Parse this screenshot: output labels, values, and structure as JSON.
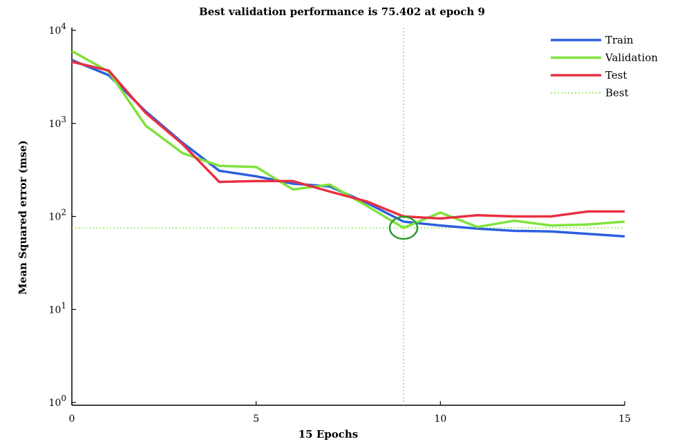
{
  "chart_data": {
    "type": "line",
    "title": "Best validation performance is 75.402 at epoch 9",
    "xlabel": "15 Epochs",
    "ylabel": "Mean Squared error (mse)",
    "x_ticks": [
      "0",
      "5",
      "10",
      "15"
    ],
    "y_ticks": [
      {
        "base": "10",
        "exp": "0"
      },
      {
        "base": "10",
        "exp": "1"
      },
      {
        "base": "10",
        "exp": "2"
      },
      {
        "base": "10",
        "exp": "3"
      },
      {
        "base": "10",
        "exp": "4"
      }
    ],
    "xlim": [
      0,
      15
    ],
    "ylim": [
      1,
      10000
    ],
    "y_scale": "log",
    "legend_position": "top-right",
    "x": [
      0,
      1,
      2,
      3,
      4,
      5,
      6,
      7,
      8,
      9,
      10,
      11,
      12,
      13,
      14,
      15
    ],
    "series": [
      {
        "name": "Train",
        "color": "#2b5fe0",
        "values": [
          4800,
          3300,
          1350,
          620,
          310,
          270,
          225,
          210,
          140,
          88,
          80,
          74,
          70,
          69,
          65,
          61
        ]
      },
      {
        "name": "Validation",
        "color": "#7fe23a",
        "values": [
          6000,
          3600,
          950,
          480,
          350,
          340,
          195,
          220,
          130,
          75.402,
          110,
          77,
          90,
          80,
          82,
          88
        ]
      },
      {
        "name": "Test",
        "color": "#e83040",
        "values": [
          4600,
          3700,
          1300,
          600,
          235,
          240,
          240,
          185,
          145,
          100,
          95,
          103,
          100,
          100,
          113,
          113
        ]
      }
    ],
    "best": {
      "name": "Best",
      "epoch": 9,
      "value": 75.402,
      "color": "#7fe23a",
      "marker_color": "#2a9a2a"
    }
  }
}
